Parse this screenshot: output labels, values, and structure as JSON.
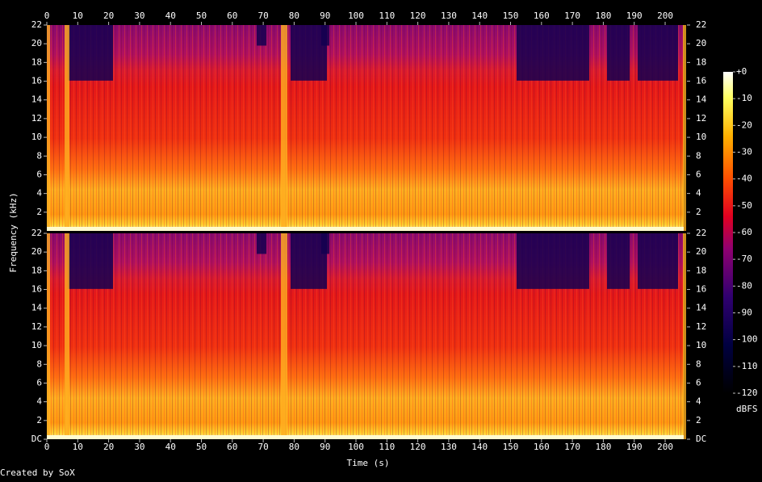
{
  "chart_data": {
    "type": "spectrogram",
    "x_label": "Time (s)",
    "y_label": "Frequency (kHz)",
    "xlim": [
      0,
      206
    ],
    "xticks": [
      0,
      10,
      20,
      30,
      40,
      50,
      60,
      70,
      80,
      90,
      100,
      110,
      120,
      130,
      140,
      150,
      160,
      170,
      180,
      190,
      200
    ],
    "ylim": [
      0,
      22
    ],
    "yticks": [
      {
        "value": 0,
        "label": "DC"
      },
      2,
      4,
      6,
      8,
      10,
      12,
      14,
      16,
      18,
      20,
      22
    ],
    "colorbar": {
      "label": "dBFS",
      "lim": [
        -120,
        0
      ],
      "ticks": [
        {
          "value": 0,
          "label": "+0"
        },
        -10,
        -20,
        -30,
        -40,
        -50,
        -60,
        -70,
        -80,
        -90,
        -100,
        -110,
        -120
      ]
    },
    "credit": "Created by SoX"
  }
}
